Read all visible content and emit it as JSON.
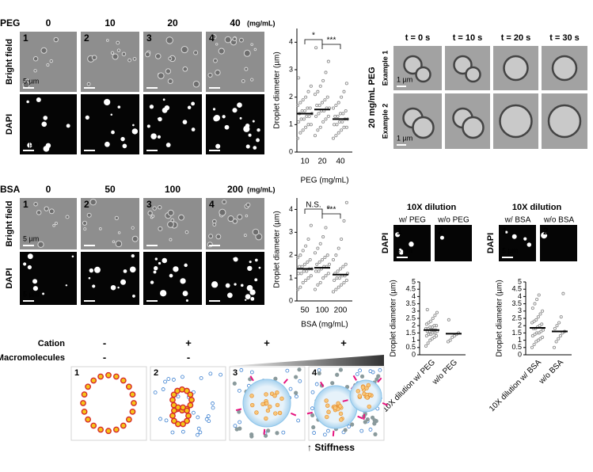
{
  "peg_panel": {
    "title": "PEG",
    "concentrations": [
      "0",
      "10",
      "20",
      "40"
    ],
    "unit": "(mg/mL)",
    "rows": [
      "Bright field",
      "DAPI"
    ],
    "image_numbers": [
      "1",
      "2",
      "3",
      "4"
    ],
    "scale_bar": "5 µm"
  },
  "peg_time_panel": {
    "times": [
      "t = 0 s",
      "t = 10 s",
      "t = 20 s",
      "t = 30 s"
    ],
    "condition": "20 mg/mL PEG",
    "rows": [
      "Example 1",
      "Example 2"
    ],
    "scale_bar": "1 µm"
  },
  "bsa_panel": {
    "title": "BSA",
    "concentrations": [
      "0",
      "50",
      "100",
      "200"
    ],
    "unit": "(mg/mL)",
    "rows": [
      "Bright field",
      "DAPI"
    ],
    "image_numbers": [
      "1",
      "2",
      "3",
      "4"
    ],
    "scale_bar": "5 µm"
  },
  "dilution_panels": [
    {
      "title": "10X dilution",
      "columns": [
        "w/ PEG",
        "w/o PEG"
      ],
      "row": "DAPI",
      "image_numbers": [
        "1",
        "2"
      ],
      "scale_bar": "5 µm"
    },
    {
      "title": "10X dilution",
      "columns": [
        "w/ BSA",
        "w/o BSA"
      ],
      "row": "DAPI",
      "image_numbers": [
        "1",
        "2"
      ],
      "scale_bar": "5 µm"
    }
  ],
  "schematic": {
    "rows": [
      {
        "label": "Cation",
        "signs": [
          "-",
          "+",
          "+",
          "+"
        ]
      },
      {
        "label": "Macromolecules",
        "signs": [
          "-",
          "-"
        ]
      }
    ],
    "panel_numbers": [
      "1",
      "2",
      "3",
      "4"
    ],
    "annotation": "↑ Stiffness"
  },
  "chart_data": [
    {
      "type": "strip",
      "ylabel": "Droplet diameter (µm)",
      "xlabel": "PEG (mg/mL)",
      "categories": [
        "10",
        "20",
        "40"
      ],
      "color": "#8f8f8f",
      "values": [
        [
          0.5,
          0.7,
          0.8,
          0.9,
          1.0,
          1.0,
          1.1,
          1.2,
          1.2,
          1.3,
          1.3,
          1.4,
          1.4,
          1.5,
          1.5,
          1.6,
          1.6,
          1.7,
          1.8,
          1.9,
          2.0,
          2.2,
          2.4,
          2.7
        ],
        [
          0.6,
          0.8,
          0.9,
          1.1,
          1.2,
          1.3,
          1.3,
          1.4,
          1.5,
          1.5,
          1.6,
          1.6,
          1.7,
          1.7,
          1.8,
          1.9,
          2.0,
          2.1,
          2.2,
          2.4,
          2.6,
          2.9,
          3.3,
          3.8
        ],
        [
          0.5,
          0.6,
          0.7,
          0.8,
          0.9,
          0.9,
          1.0,
          1.0,
          1.1,
          1.1,
          1.2,
          1.2,
          1.3,
          1.3,
          1.4,
          1.4,
          1.5,
          1.6,
          1.7,
          1.8,
          2.0,
          2.2,
          2.5
        ]
      ],
      "means": [
        1.4,
        1.55,
        1.2
      ],
      "ylim": [
        0,
        4.5
      ],
      "yticks": [
        0,
        1,
        2,
        3,
        4
      ],
      "significance": [
        {
          "label": "*",
          "between": [
            0,
            1
          ]
        },
        {
          "label": "***",
          "between": [
            1,
            2
          ]
        }
      ]
    },
    {
      "type": "strip",
      "ylabel": "Droplet diameter (µm)",
      "xlabel": "BSA (mg/mL)",
      "categories": [
        "50",
        "100",
        "200"
      ],
      "color": "#8f8f8f",
      "values": [
        [
          0.5,
          0.6,
          0.8,
          0.9,
          1.0,
          1.1,
          1.2,
          1.2,
          1.3,
          1.3,
          1.4,
          1.4,
          1.5,
          1.5,
          1.6,
          1.7,
          1.8,
          1.9,
          2.0,
          2.2,
          2.4,
          2.7,
          3.3
        ],
        [
          0.5,
          0.7,
          0.8,
          1.0,
          1.1,
          1.2,
          1.3,
          1.3,
          1.4,
          1.5,
          1.5,
          1.6,
          1.6,
          1.7,
          1.8,
          1.9,
          2.0,
          2.1,
          2.3,
          2.5,
          2.8,
          3.2,
          4.1
        ],
        [
          0.4,
          0.5,
          0.6,
          0.7,
          0.8,
          0.9,
          0.9,
          1.0,
          1.0,
          1.1,
          1.1,
          1.2,
          1.2,
          1.3,
          1.4,
          1.5,
          1.6,
          1.8,
          2.0,
          2.3,
          2.7,
          3.5,
          4.3
        ]
      ],
      "means": [
        1.4,
        1.45,
        1.15
      ],
      "ylim": [
        0,
        4.5
      ],
      "yticks": [
        0,
        1,
        2,
        3,
        4
      ],
      "significance": [
        {
          "label": "N.S.",
          "between": [
            0,
            1
          ]
        },
        {
          "label": "***",
          "between": [
            1,
            2
          ]
        }
      ]
    },
    {
      "type": "strip",
      "ylabel": "Droplet diameter (µm)",
      "categories": [
        "10X dilution w/ PEG",
        "w/o PEG"
      ],
      "color": "#8f8f8f",
      "values": [
        [
          0.6,
          0.8,
          1.0,
          1.1,
          1.2,
          1.3,
          1.3,
          1.4,
          1.4,
          1.5,
          1.5,
          1.6,
          1.6,
          1.6,
          1.7,
          1.7,
          1.7,
          1.8,
          1.8,
          1.9,
          1.9,
          2.0,
          2.0,
          2.1,
          2.2,
          2.3,
          2.5,
          2.7,
          2.9,
          3.1
        ],
        [
          0.9,
          1.0,
          1.2,
          1.3,
          1.4,
          1.5,
          2.4
        ]
      ],
      "means": [
        1.7,
        1.45
      ],
      "ylim": [
        0,
        5
      ],
      "yticks": [
        0,
        0.5,
        1,
        1.5,
        2,
        2.5,
        3,
        3.5,
        4,
        4.5,
        5
      ]
    },
    {
      "type": "strip",
      "ylabel": "Droplet diameter (µm)",
      "categories": [
        "10X dilution w/ BSA",
        "w/o BSA"
      ],
      "color": "#8f8f8f",
      "values": [
        [
          0.5,
          0.7,
          0.9,
          1.0,
          1.1,
          1.2,
          1.3,
          1.4,
          1.5,
          1.5,
          1.6,
          1.7,
          1.8,
          1.8,
          1.9,
          2.0,
          2.1,
          2.2,
          2.3,
          2.4,
          2.6,
          2.8,
          3.0,
          3.2,
          3.5,
          3.8,
          4.1
        ],
        [
          0.5,
          0.9,
          1.1,
          1.3,
          1.5,
          1.6,
          1.8,
          2.0,
          2.2,
          2.6,
          4.2
        ]
      ],
      "means": [
        1.85,
        1.6
      ],
      "ylim": [
        0,
        5
      ],
      "yticks": [
        0,
        0.5,
        1,
        1.5,
        2,
        2.5,
        3,
        3.5,
        4,
        4.5,
        5
      ]
    }
  ]
}
